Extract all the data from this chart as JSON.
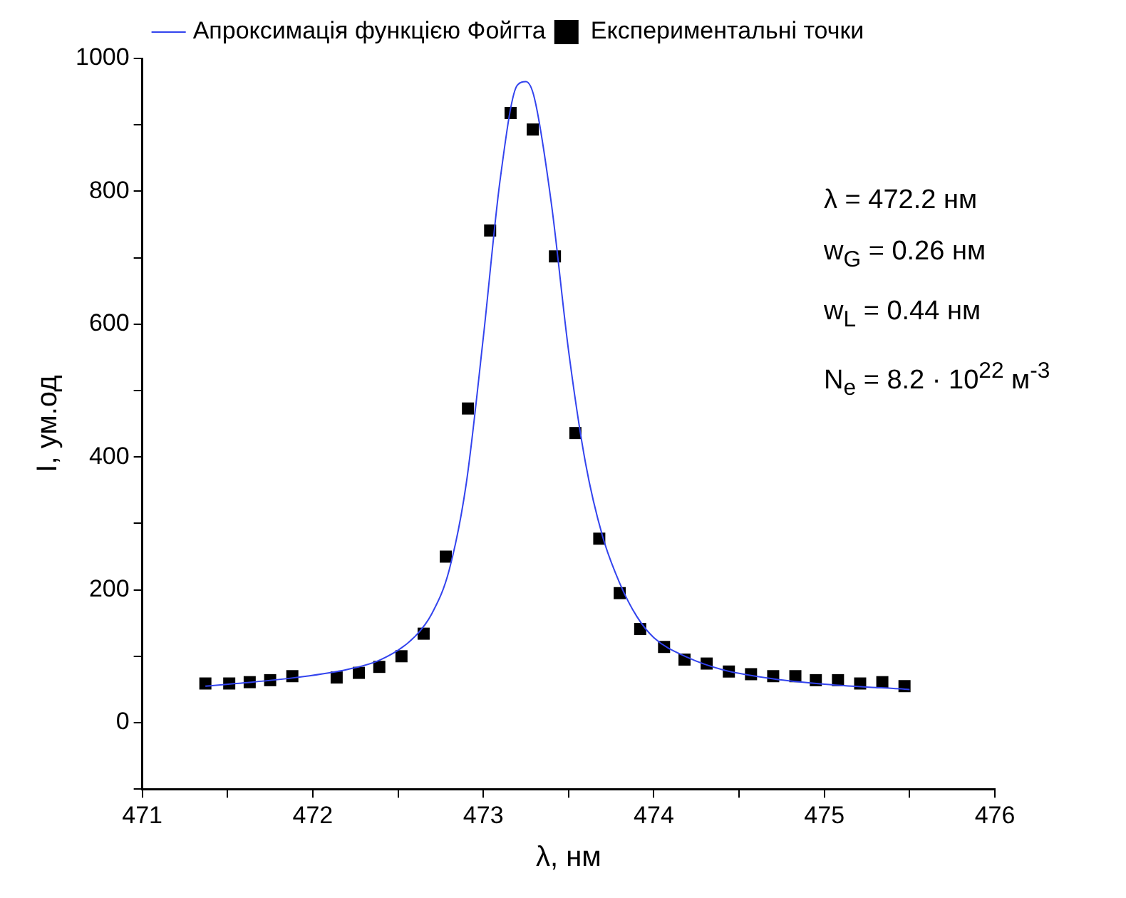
{
  "chart_data": {
    "type": "scatter",
    "xlabel": "λ, нм",
    "ylabel": "I, ум.од",
    "xlim": [
      471,
      476
    ],
    "ylim": [
      -100,
      1000
    ],
    "xticks": [
      471,
      {
        "value": 471.5,
        "label": null
      },
      472,
      {
        "value": 472.5,
        "label": null
      },
      473,
      {
        "value": 473.5,
        "label": null
      },
      474,
      {
        "value": 474.5,
        "label": null
      },
      475,
      {
        "value": 475.5,
        "label": null
      },
      476
    ],
    "yticks": [
      {
        "value": -100,
        "label": null
      },
      0,
      {
        "value": 100,
        "label": null
      },
      200,
      {
        "value": 300,
        "label": null
      },
      400,
      {
        "value": 500,
        "label": null
      },
      600,
      {
        "value": 700,
        "label": null
      },
      800,
      {
        "value": 900,
        "label": null
      },
      1000
    ],
    "grid": false,
    "legend": "top",
    "series": [
      {
        "name": "Експериментальні точки",
        "type": "scatter",
        "marker": "square",
        "color": "#000000",
        "x": [
          471.37,
          471.51,
          471.63,
          471.75,
          471.88,
          472.14,
          472.27,
          472.39,
          472.52,
          472.65,
          472.78,
          472.91,
          473.04,
          473.16,
          473.29,
          473.42,
          473.54,
          473.68,
          473.8,
          473.92,
          474.06,
          474.18,
          474.31,
          474.44,
          474.57,
          474.7,
          474.83,
          474.95,
          475.08,
          475.21,
          475.34,
          475.47
        ],
        "values": [
          59,
          59,
          61,
          64,
          70,
          68,
          75,
          84,
          100,
          134,
          250,
          473,
          741,
          918,
          893,
          702,
          436,
          277,
          195,
          141,
          114,
          95,
          89,
          77,
          73,
          70,
          70,
          64,
          64,
          59,
          61,
          55
        ]
      },
      {
        "name": "Апроксимація функцією Фойгта",
        "type": "line",
        "marker": "none",
        "color": "#3344ee",
        "x": [
          471.37,
          471.6,
          471.9,
          472.2,
          472.4,
          472.6,
          472.7,
          472.8,
          472.9,
          473.0,
          473.1,
          473.2,
          473.25,
          473.3,
          473.4,
          473.5,
          473.6,
          473.7,
          473.8,
          473.9,
          474.0,
          474.2,
          474.4,
          474.7,
          475.0,
          475.5
        ],
        "values": [
          55,
          60,
          68,
          80,
          95,
          130,
          165,
          230,
          360,
          580,
          820,
          960,
          965,
          940,
          780,
          560,
          390,
          280,
          210,
          160,
          128,
          98,
          80,
          66,
          58,
          50
        ]
      }
    ],
    "annotations": [
      "λ = 472.2 нм",
      "w$_{G}$ = 0.26 нм",
      "w$_{L}$ = 0.44 нм",
      "N$_{e}$ = 8.2 · 10$^{22}$ м$^{-3}$"
    ]
  }
}
